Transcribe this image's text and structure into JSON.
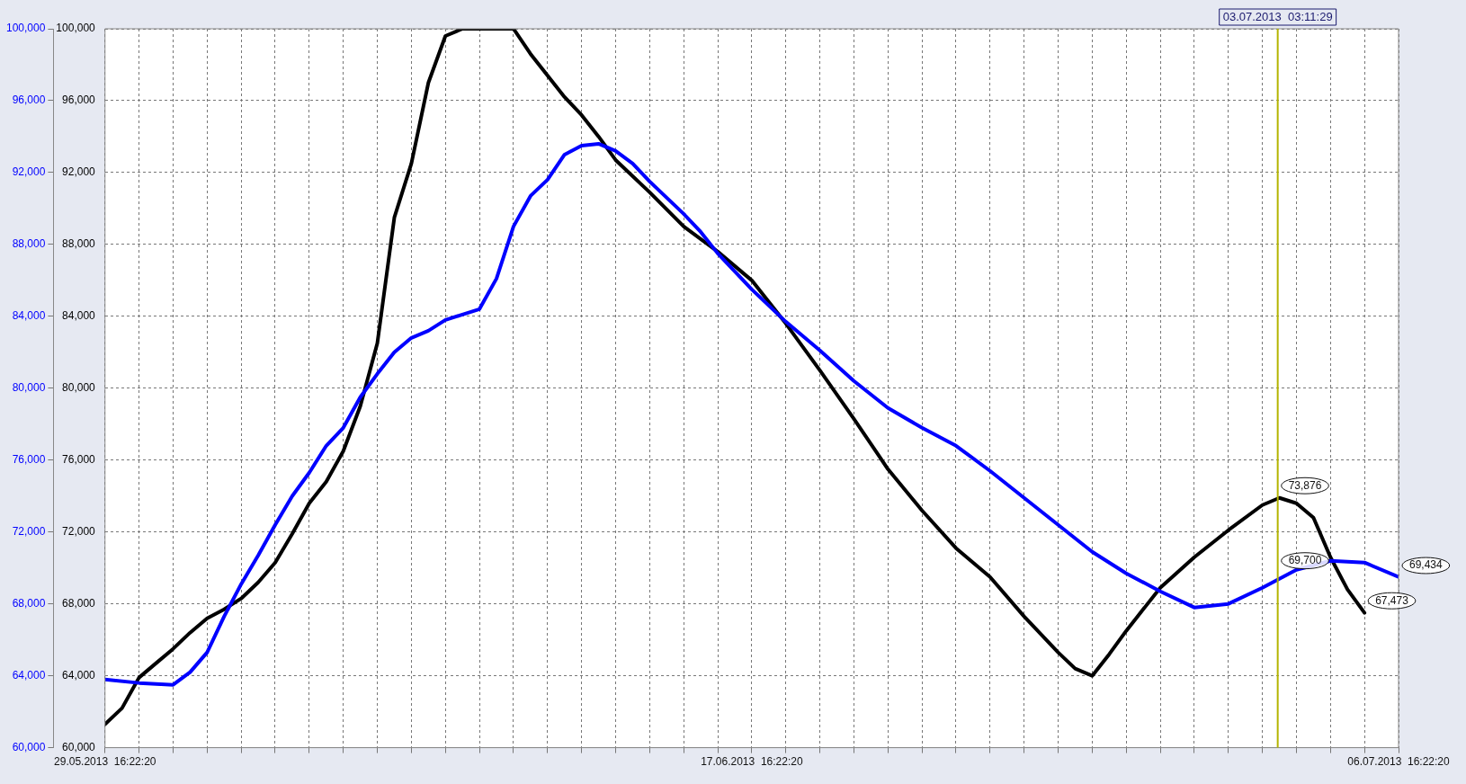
{
  "chart_data": {
    "type": "line",
    "marker": "none",
    "line_style": "solid",
    "grid": true,
    "legend": false,
    "xlim": [
      "2013-05-29T16:22",
      "2013-07-06T16:22"
    ],
    "xticks": [
      {
        "value": "2013-05-29T16:22",
        "label": "29.05.2013  16:22:20"
      },
      {
        "value": "2013-05-30T16:22",
        "label": null
      },
      {
        "value": "2013-05-31T16:22",
        "label": null
      },
      {
        "value": "2013-06-01T16:22",
        "label": null
      },
      {
        "value": "2013-06-02T16:22",
        "label": null
      },
      {
        "value": "2013-06-03T16:22",
        "label": null
      },
      {
        "value": "2013-06-04T16:22",
        "label": null
      },
      {
        "value": "2013-06-05T16:22",
        "label": null
      },
      {
        "value": "2013-06-06T16:22",
        "label": null
      },
      {
        "value": "2013-06-07T16:22",
        "label": null
      },
      {
        "value": "2013-06-08T16:22",
        "label": null
      },
      {
        "value": "2013-06-09T16:22",
        "label": null
      },
      {
        "value": "2013-06-10T16:22",
        "label": null
      },
      {
        "value": "2013-06-11T16:22",
        "label": null
      },
      {
        "value": "2013-06-12T16:22",
        "label": null
      },
      {
        "value": "2013-06-13T16:22",
        "label": null
      },
      {
        "value": "2013-06-14T16:22",
        "label": null
      },
      {
        "value": "2013-06-15T16:22",
        "label": null
      },
      {
        "value": "2013-06-16T16:22",
        "label": null
      },
      {
        "value": "2013-06-17T16:22",
        "label": "17.06.2013  16:22:20"
      },
      {
        "value": "2013-06-18T16:22",
        "label": null
      },
      {
        "value": "2013-06-19T16:22",
        "label": null
      },
      {
        "value": "2013-06-20T16:22",
        "label": null
      },
      {
        "value": "2013-06-21T16:22",
        "label": null
      },
      {
        "value": "2013-06-22T16:22",
        "label": null
      },
      {
        "value": "2013-06-23T16:22",
        "label": null
      },
      {
        "value": "2013-06-24T16:22",
        "label": null
      },
      {
        "value": "2013-06-25T16:22",
        "label": null
      },
      {
        "value": "2013-06-26T16:22",
        "label": null
      },
      {
        "value": "2013-06-27T16:22",
        "label": null
      },
      {
        "value": "2013-06-28T16:22",
        "label": null
      },
      {
        "value": "2013-06-29T16:22",
        "label": null
      },
      {
        "value": "2013-06-30T16:22",
        "label": null
      },
      {
        "value": "2013-07-01T16:22",
        "label": null
      },
      {
        "value": "2013-07-02T16:22",
        "label": null
      },
      {
        "value": "2013-07-03T16:22",
        "label": null
      },
      {
        "value": "2013-07-04T16:22",
        "label": null
      },
      {
        "value": "2013-07-05T16:22",
        "label": null
      },
      {
        "value": "2013-07-06T16:22",
        "label": "06.07.2013  16:22:20"
      }
    ],
    "ylim": [
      60000,
      100000
    ],
    "yticks": [
      {
        "value": 60000,
        "label": "60,000"
      },
      {
        "value": 64000,
        "label": "64,000"
      },
      {
        "value": 68000,
        "label": "68,000"
      },
      {
        "value": 72000,
        "label": "72,000"
      },
      {
        "value": 76000,
        "label": "76,000"
      },
      {
        "value": 80000,
        "label": "80,000"
      },
      {
        "value": 84000,
        "label": "84,000"
      },
      {
        "value": 88000,
        "label": "88,000"
      },
      {
        "value": 92000,
        "label": "92,000"
      },
      {
        "value": 96000,
        "label": "96,000"
      },
      {
        "value": 100000,
        "label": "100,000"
      }
    ],
    "y2lim": [
      60000,
      100000
    ],
    "y2ticks": [
      {
        "value": 60000,
        "label": "60,000"
      },
      {
        "value": 64000,
        "label": "64,000"
      },
      {
        "value": 68000,
        "label": "68,000"
      },
      {
        "value": 72000,
        "label": "72,000"
      },
      {
        "value": 76000,
        "label": "76,000"
      },
      {
        "value": 80000,
        "label": "80,000"
      },
      {
        "value": 84000,
        "label": "84,000"
      },
      {
        "value": 88000,
        "label": "88,000"
      },
      {
        "value": 92000,
        "label": "92,000"
      },
      {
        "value": 96000,
        "label": "96,000"
      },
      {
        "value": 100000,
        "label": "100,000"
      }
    ],
    "ref_lines": [
      {
        "axis": "x",
        "value": "2013-07-03T03:11",
        "label": "03.07.2013  03:11:29",
        "color": "#b4b400"
      }
    ],
    "annotations": [
      {
        "text": "69,700",
        "x": "2013-07-03T03:11",
        "y": 69700
      },
      {
        "text": "73,876",
        "x": "2013-07-03T03:11",
        "y": 73876
      },
      {
        "text": "69,434",
        "x": "2013-07-06T16:22",
        "y": 69434
      },
      {
        "text": "67,473",
        "x": "2013-07-05T16:22",
        "y": 67473
      }
    ],
    "series": [
      {
        "color": "#0000ff",
        "axis": "y",
        "x": [
          "2013-05-29T16:22",
          "2013-05-30T16:22",
          "2013-05-31T16:22",
          "2013-06-01T04:22",
          "2013-06-01T16:22",
          "2013-06-02T04:22",
          "2013-06-02T16:22",
          "2013-06-03T04:22",
          "2013-06-03T16:22",
          "2013-06-04T04:22",
          "2013-06-04T16:22",
          "2013-06-05T04:22",
          "2013-06-05T16:22",
          "2013-06-06T04:22",
          "2013-06-06T16:22",
          "2013-06-07T04:22",
          "2013-06-07T16:22",
          "2013-06-08T04:22",
          "2013-06-08T16:22",
          "2013-06-09T04:22",
          "2013-06-09T16:22",
          "2013-06-10T04:22",
          "2013-06-10T16:22",
          "2013-06-11T04:22",
          "2013-06-11T16:22",
          "2013-06-12T04:22",
          "2013-06-12T16:22",
          "2013-06-13T04:22",
          "2013-06-13T16:22",
          "2013-06-14T04:22",
          "2013-06-14T16:22",
          "2013-06-15T16:22",
          "2013-06-16T04:22",
          "2013-06-16T16:22",
          "2013-06-17T16:22",
          "2013-06-18T16:22",
          "2013-06-19T16:22",
          "2013-06-20T16:22",
          "2013-06-21T16:22",
          "2013-06-22T16:22",
          "2013-06-23T16:22",
          "2013-06-24T16:22",
          "2013-06-25T16:22",
          "2013-06-26T16:22",
          "2013-06-27T16:22",
          "2013-06-28T16:22",
          "2013-06-29T16:22",
          "2013-06-30T16:22",
          "2013-07-01T16:22",
          "2013-07-02T16:22",
          "2013-07-03T16:22",
          "2013-07-04T16:22",
          "2013-07-05T16:22",
          "2013-07-06T16:22"
        ],
        "values": [
          63800,
          63600,
          63500,
          64200,
          65300,
          67300,
          69100,
          70700,
          72400,
          74000,
          75300,
          76800,
          77800,
          79500,
          80800,
          82000,
          82800,
          83200,
          83800,
          84100,
          84400,
          86100,
          89000,
          90700,
          91600,
          93000,
          93500,
          93600,
          93200,
          92500,
          91500,
          89700,
          88700,
          87500,
          85500,
          83700,
          82100,
          80400,
          78900,
          77800,
          76800,
          75400,
          73900,
          72400,
          70900,
          69700,
          68700,
          67800,
          68000,
          68900,
          69900,
          70400,
          70300,
          69500
        ]
      },
      {
        "color": "#000000",
        "axis": "y2",
        "x": [
          "2013-05-29T16:22",
          "2013-05-30T04:22",
          "2013-05-30T16:22",
          "2013-05-31T04:22",
          "2013-05-31T16:22",
          "2013-06-01T04:22",
          "2013-06-01T16:22",
          "2013-06-02T04:22",
          "2013-06-02T16:22",
          "2013-06-03T04:22",
          "2013-06-03T16:22",
          "2013-06-04T04:22",
          "2013-06-04T16:22",
          "2013-06-05T04:22",
          "2013-06-05T16:22",
          "2013-06-06T04:22",
          "2013-06-06T16:22",
          "2013-06-07T04:22",
          "2013-06-07T16:22",
          "2013-06-08T04:22",
          "2013-06-08T16:22",
          "2013-06-09T04:22",
          "2013-06-10T16:22",
          "2013-06-11T04:22",
          "2013-06-11T16:22",
          "2013-06-12T04:22",
          "2013-06-12T16:22",
          "2013-06-13T04:22",
          "2013-06-13T16:22",
          "2013-06-14T16:22",
          "2013-06-15T16:22",
          "2013-06-16T16:22",
          "2013-06-17T16:22",
          "2013-06-18T16:22",
          "2013-06-19T16:22",
          "2013-06-20T16:22",
          "2013-06-21T16:22",
          "2013-06-22T16:22",
          "2013-06-23T16:22",
          "2013-06-24T16:22",
          "2013-06-25T16:22",
          "2013-06-26T16:22",
          "2013-06-27T04:22",
          "2013-06-27T16:22",
          "2013-06-28T04:22",
          "2013-06-28T16:22",
          "2013-06-29T16:22",
          "2013-06-30T16:22",
          "2013-07-01T16:22",
          "2013-07-02T16:22",
          "2013-07-03T04:22",
          "2013-07-03T16:22",
          "2013-07-04T04:22",
          "2013-07-04T16:22",
          "2013-07-05T04:22",
          "2013-07-05T16:22"
        ],
        "values": [
          61300,
          62200,
          63900,
          64700,
          65500,
          66400,
          67200,
          67700,
          68300,
          69200,
          70300,
          71900,
          73600,
          74800,
          76500,
          79000,
          82500,
          89500,
          92500,
          97000,
          99600,
          100000,
          100000,
          98600,
          97400,
          96200,
          95200,
          94000,
          92700,
          90900,
          89000,
          87600,
          86000,
          83600,
          81000,
          78300,
          75500,
          73200,
          71100,
          69500,
          67300,
          65300,
          64400,
          64000,
          65200,
          66500,
          68900,
          70600,
          72100,
          73500,
          73900,
          73600,
          72800,
          70600,
          68800,
          67500
        ]
      }
    ]
  }
}
